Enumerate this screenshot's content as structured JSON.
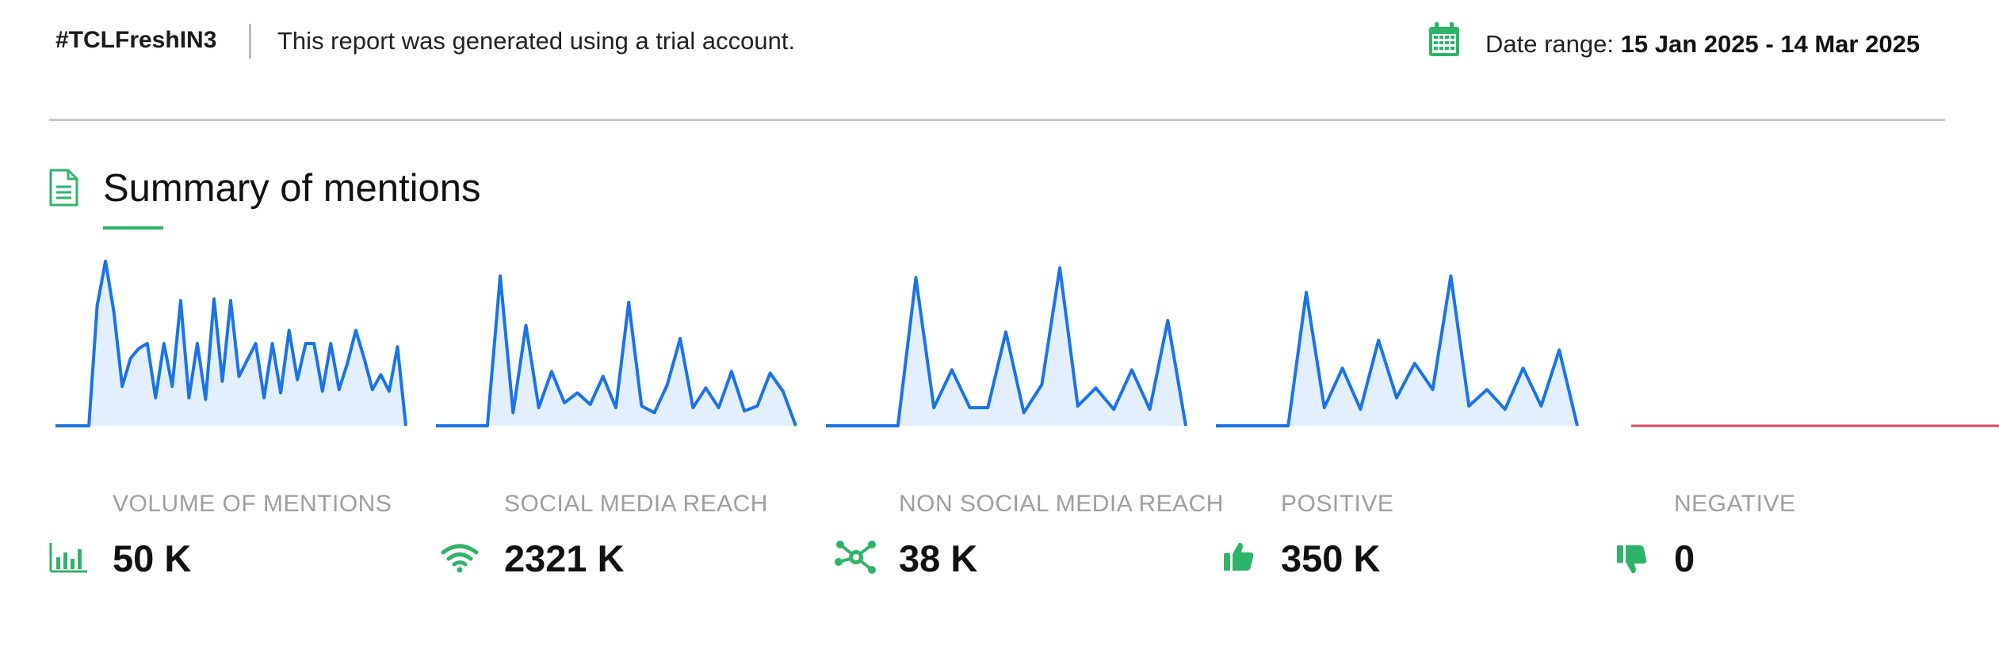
{
  "header": {
    "hashtag": "#TCLFreshIN3",
    "trial_notice": "This report was generated using a trial account.",
    "date_label": "Date range:",
    "date_value": "15 Jan 2025 - 14 Mar 2025"
  },
  "section": {
    "title": "Summary of mentions"
  },
  "colors": {
    "accent_green": "#2fb36b",
    "line_blue": "#1a73e8",
    "fill_blue": "#e3effd",
    "negative_red": "#e0476a",
    "label_gray": "#9e9e9e"
  },
  "metrics": [
    {
      "label": "VOLUME OF MENTIONS",
      "value": "50 K",
      "icon": "bar-chart-icon"
    },
    {
      "label": "SOCIAL MEDIA REACH",
      "value": "2321 K",
      "icon": "wifi-icon"
    },
    {
      "label": "NON SOCIAL MEDIA REACH",
      "value": "38 K",
      "icon": "network-icon"
    },
    {
      "label": "POSITIVE",
      "value": "350 K",
      "icon": "thumbs-up-icon"
    },
    {
      "label": "NEGATIVE",
      "value": "0",
      "icon": "thumbs-down-icon"
    }
  ],
  "chart_data": [
    {
      "type": "area",
      "series": [
        {
          "values": [
            0,
            0,
            0,
            0,
            0,
            0.73,
            1.0,
            0.69,
            0.24,
            0.41,
            0.47,
            0.5,
            0.17,
            0.5,
            0.24,
            0.76,
            0.17,
            0.5,
            0.16,
            0.77,
            0.27,
            0.76,
            0.3,
            0.4,
            0.5,
            0.17,
            0.5,
            0.2,
            0.58,
            0.28,
            0.5,
            0.5,
            0.21,
            0.5,
            0.22,
            0.38,
            0.58,
            0.41,
            0.22,
            0.31,
            0.21,
            0.48,
            0.0
          ]
        }
      ]
    },
    {
      "type": "area",
      "series": [
        {
          "values": [
            0,
            0,
            0,
            0,
            0,
            0.91,
            0.08,
            0.61,
            0.11,
            0.33,
            0.14,
            0.2,
            0.13,
            0.3,
            0.11,
            0.75,
            0.12,
            0.08,
            0.25,
            0.53,
            0.11,
            0.23,
            0.11,
            0.33,
            0.09,
            0.12,
            0.32,
            0.21,
            0.0
          ]
        }
      ]
    },
    {
      "type": "area",
      "series": [
        {
          "values": [
            0,
            0,
            0,
            0,
            0,
            0.9,
            0.11,
            0.34,
            0.11,
            0.11,
            0.57,
            0.08,
            0.25,
            0.96,
            0.12,
            0.23,
            0.1,
            0.34,
            0.1,
            0.64,
            0.0
          ]
        }
      ]
    },
    {
      "type": "area",
      "series": [
        {
          "values": [
            0,
            0,
            0,
            0,
            0,
            0.81,
            0.11,
            0.35,
            0.1,
            0.52,
            0.17,
            0.38,
            0.22,
            0.91,
            0.12,
            0.22,
            0.1,
            0.35,
            0.12,
            0.46,
            0.0
          ]
        }
      ]
    },
    {
      "type": "line",
      "series": [
        {
          "values": [
            0,
            0
          ]
        }
      ]
    }
  ]
}
